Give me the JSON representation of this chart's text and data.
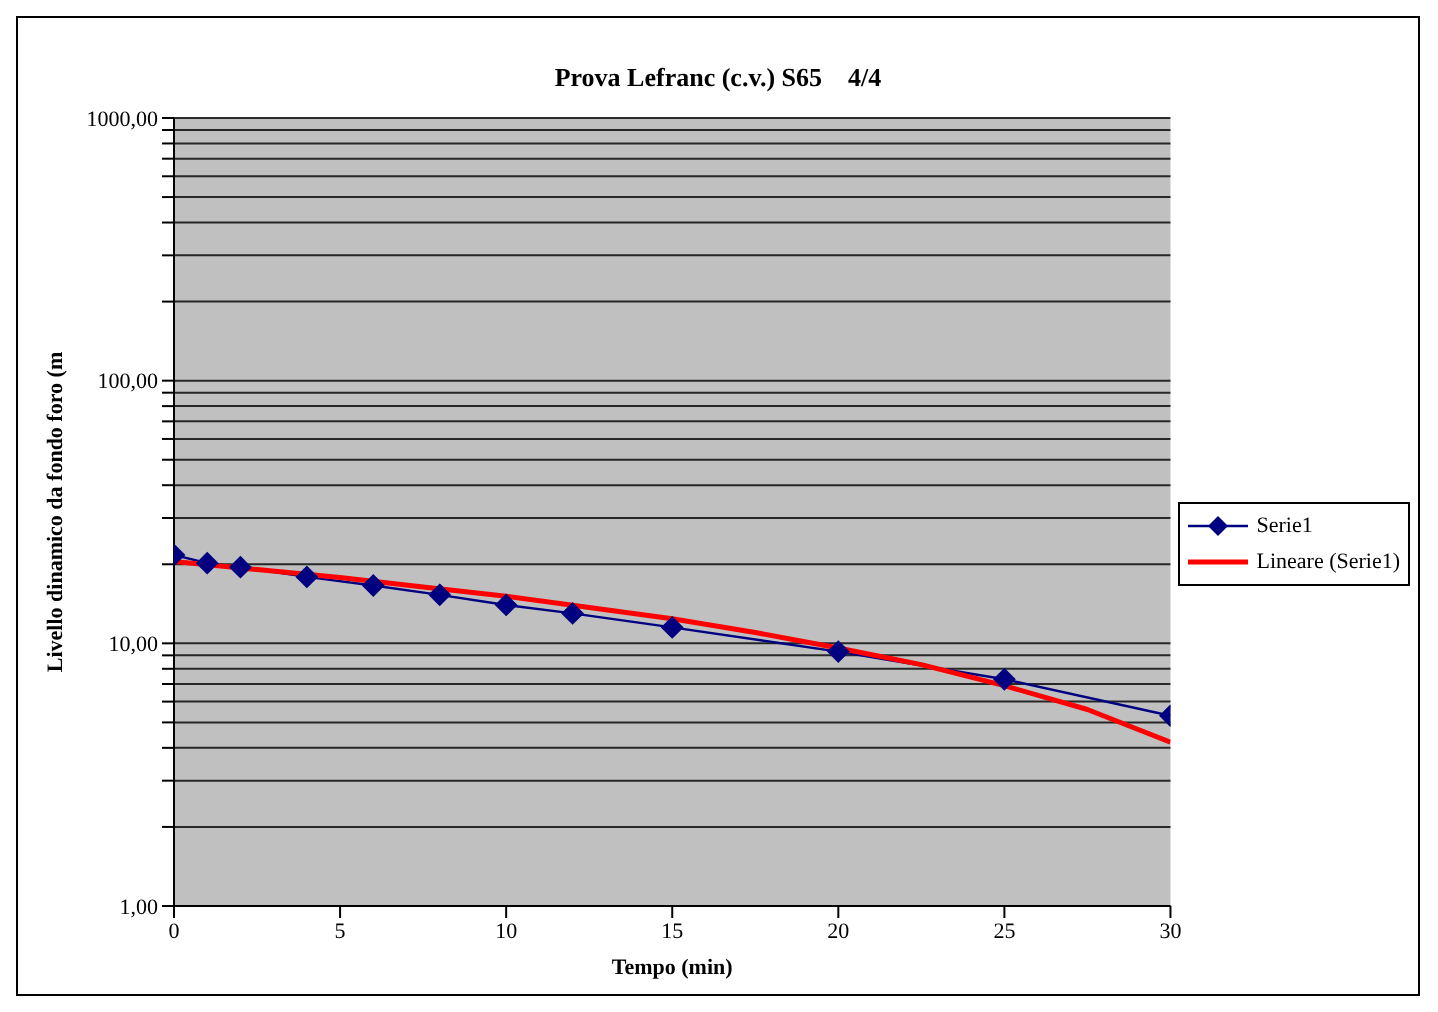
{
  "chart_data": {
    "type": "line",
    "title": "Prova Lefranc (c.v.) S65    4/4",
    "xlabel": "Tempo (min)",
    "ylabel": "Livello dinamico da fondo foro (m",
    "log": "y",
    "grid": "y",
    "legend": "right",
    "xlim": [
      0,
      30
    ],
    "xticks": [
      0,
      5,
      10,
      15,
      20,
      25,
      30
    ],
    "ylim": [
      1,
      1000
    ],
    "yticks": [
      {
        "value": 1,
        "label": "1,00"
      },
      {
        "value": 2,
        "label": null
      },
      {
        "value": 3,
        "label": null
      },
      {
        "value": 4,
        "label": null
      },
      {
        "value": 5,
        "label": null
      },
      {
        "value": 6,
        "label": null
      },
      {
        "value": 7,
        "label": null
      },
      {
        "value": 8,
        "label": null
      },
      {
        "value": 9,
        "label": null
      },
      {
        "value": 10,
        "label": "10,00"
      },
      {
        "value": 20,
        "label": null
      },
      {
        "value": 30,
        "label": null
      },
      {
        "value": 40,
        "label": null
      },
      {
        "value": 50,
        "label": null
      },
      {
        "value": 60,
        "label": null
      },
      {
        "value": 70,
        "label": null
      },
      {
        "value": 80,
        "label": null
      },
      {
        "value": 90,
        "label": null
      },
      {
        "value": 100,
        "label": "100,00"
      },
      {
        "value": 200,
        "label": null
      },
      {
        "value": 300,
        "label": null
      },
      {
        "value": 400,
        "label": null
      },
      {
        "value": 500,
        "label": null
      },
      {
        "value": 600,
        "label": null
      },
      {
        "value": 700,
        "label": null
      },
      {
        "value": 800,
        "label": null
      },
      {
        "value": 900,
        "label": null
      },
      {
        "value": 1000,
        "label": "1000,00"
      }
    ],
    "series": [
      {
        "name": "Serie1",
        "color": "#000080",
        "marker": "diamond",
        "x": [
          0,
          1,
          2,
          4,
          6,
          8,
          10,
          12,
          15,
          20,
          25,
          30
        ],
        "values": [
          21.7,
          20.2,
          19.5,
          17.9,
          16.6,
          15.3,
          14.0,
          13.0,
          11.5,
          9.3,
          7.3,
          5.3
        ]
      },
      {
        "name": "Lineare (Serie1)",
        "color": "#ff0000",
        "marker": "none",
        "x": [
          0,
          2.5,
          5,
          7.5,
          10,
          12.5,
          15,
          17.5,
          20,
          22.5,
          25,
          27.5,
          30
        ],
        "values": [
          20.5,
          19.1,
          17.8,
          16.4,
          15.1,
          13.7,
          12.4,
          11.0,
          9.6,
          8.3,
          6.9,
          5.6,
          4.2
        ]
      }
    ]
  }
}
